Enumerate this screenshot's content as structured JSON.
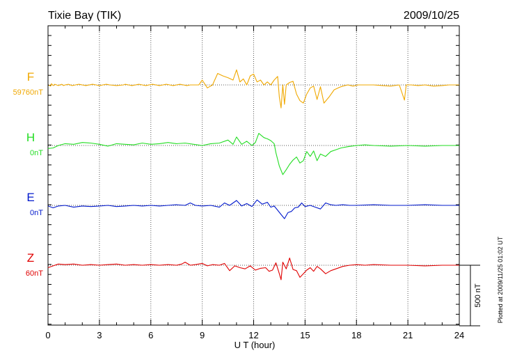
{
  "chart_data": {
    "type": "line",
    "title": "Tixie Bay (TIK)",
    "date": "2009/10/25",
    "xlabel": "U T (hour)",
    "xlim": [
      0,
      24
    ],
    "xticks": [
      0,
      3,
      6,
      9,
      12,
      15,
      18,
      21,
      24
    ],
    "grid": true,
    "scale_bar_label": "500 nT",
    "scale_bar_nT": 500,
    "plotted_note": "Plotted at 2009/11/25 01:02 UT",
    "series": [
      {
        "name": "F",
        "baseline_label": "59760nT",
        "color": "#f0a800",
        "points": [
          [
            0.05,
            0.0
          ],
          [
            0.15,
            -2.0
          ],
          [
            0.2,
            2.0
          ],
          [
            0.3,
            -1.0
          ],
          [
            0.4,
            1.0
          ],
          [
            0.5,
            0.0
          ],
          [
            0.6,
            -1.0
          ],
          [
            0.7,
            0.0
          ],
          [
            0.8,
            1.0
          ],
          [
            0.9,
            -1.0
          ],
          [
            1.0,
            0.0
          ],
          [
            1.2,
            1.0
          ],
          [
            1.4,
            -1.0
          ],
          [
            1.6,
            0.0
          ],
          [
            1.8,
            1.0
          ],
          [
            2.0,
            0.0
          ],
          [
            2.2,
            -1.0
          ],
          [
            2.4,
            0.0
          ],
          [
            2.6,
            1.0
          ],
          [
            2.8,
            0.0
          ],
          [
            3.0,
            -1.0
          ],
          [
            3.2,
            0.0
          ],
          [
            3.4,
            1.0
          ],
          [
            3.6,
            0.0
          ],
          [
            4.0,
            -1.0
          ],
          [
            4.4,
            0.0
          ],
          [
            4.5,
            1.0
          ],
          [
            4.7,
            0.0
          ],
          [
            4.9,
            -1.0
          ],
          [
            5.1,
            0.0
          ],
          [
            5.3,
            1.0
          ],
          [
            5.5,
            0.0
          ],
          [
            5.7,
            -1.0
          ],
          [
            5.9,
            0.0
          ],
          [
            6.1,
            1.0
          ],
          [
            6.3,
            0.0
          ],
          [
            6.5,
            -1.0
          ],
          [
            6.7,
            0.0
          ],
          [
            6.9,
            1.0
          ],
          [
            7.1,
            0.0
          ],
          [
            7.3,
            -1.0
          ],
          [
            7.5,
            0.0
          ],
          [
            7.7,
            1.0
          ],
          [
            7.9,
            0.0
          ],
          [
            8.1,
            -1.0
          ],
          [
            8.3,
            0.0
          ],
          [
            8.5,
            0.0
          ],
          [
            8.8,
            0.0
          ],
          [
            9.0,
            8.0
          ],
          [
            9.3,
            -5.0
          ],
          [
            9.6,
            0.0
          ],
          [
            9.9,
            19.0
          ],
          [
            10.2,
            15.0
          ],
          [
            10.5,
            12.0
          ],
          [
            10.8,
            8.0
          ],
          [
            11.0,
            25.0
          ],
          [
            11.2,
            5.0
          ],
          [
            11.4,
            10.0
          ],
          [
            11.6,
            0.0
          ],
          [
            11.8,
            15.0
          ],
          [
            12.0,
            18.0
          ],
          [
            12.2,
            5.0
          ],
          [
            12.4,
            8.0
          ],
          [
            12.6,
            0.0
          ],
          [
            12.8,
            5.0
          ],
          [
            13.0,
            0.0
          ],
          [
            13.2,
            8.0
          ],
          [
            13.4,
            14.0
          ],
          [
            13.5,
            -20.0
          ],
          [
            13.6,
            -38.0
          ],
          [
            13.7,
            0.0
          ],
          [
            13.8,
            -32.0
          ],
          [
            13.9,
            0.0
          ],
          [
            14.1,
            4.0
          ],
          [
            14.3,
            6.0
          ],
          [
            14.5,
            -15.0
          ],
          [
            14.7,
            -26.0
          ],
          [
            14.9,
            -30.0
          ],
          [
            15.1,
            -15.0
          ],
          [
            15.3,
            -5.0
          ],
          [
            15.5,
            -2.0
          ],
          [
            15.7,
            -24.0
          ],
          [
            15.9,
            -3.0
          ],
          [
            16.1,
            -30.0
          ],
          [
            16.4,
            -20.0
          ],
          [
            16.7,
            -8.0
          ],
          [
            17.0,
            -4.0
          ],
          [
            17.2,
            -2.0
          ],
          [
            17.5,
            0.0
          ],
          [
            17.8,
            -2.0
          ],
          [
            18.1,
            0.0
          ],
          [
            18.5,
            0.0
          ],
          [
            19.0,
            0.0
          ],
          [
            19.5,
            -1.0
          ],
          [
            20.0,
            -2.0
          ],
          [
            20.5,
            0.0
          ],
          [
            20.8,
            -25.0
          ],
          [
            20.9,
            0.0
          ],
          [
            21.2,
            0.0
          ],
          [
            21.6,
            -1.0
          ],
          [
            22.0,
            0.0
          ],
          [
            22.5,
            -2.0
          ],
          [
            23.0,
            -1.0
          ],
          [
            23.4,
            0.0
          ],
          [
            23.8,
            0.0
          ],
          [
            24.0,
            0.0
          ]
        ]
      },
      {
        "name": "H",
        "baseline_label": "0nT",
        "color": "#22dd22",
        "points": [
          [
            0.0,
            -5.0
          ],
          [
            0.3,
            -4.0
          ],
          [
            0.6,
            0.0
          ],
          [
            1.0,
            3.0
          ],
          [
            1.5,
            2.0
          ],
          [
            2.0,
            5.0
          ],
          [
            2.5,
            4.0
          ],
          [
            3.0,
            2.0
          ],
          [
            3.5,
            -1.0
          ],
          [
            4.0,
            3.0
          ],
          [
            4.5,
            2.0
          ],
          [
            5.0,
            1.0
          ],
          [
            5.5,
            4.0
          ],
          [
            6.0,
            2.0
          ],
          [
            6.5,
            3.0
          ],
          [
            7.0,
            5.0
          ],
          [
            7.5,
            3.0
          ],
          [
            8.0,
            4.0
          ],
          [
            8.5,
            2.0
          ],
          [
            9.0,
            0.0
          ],
          [
            9.5,
            3.0
          ],
          [
            10.0,
            4.0
          ],
          [
            10.5,
            9.0
          ],
          [
            10.8,
            2.0
          ],
          [
            11.0,
            14.0
          ],
          [
            11.3,
            2.0
          ],
          [
            11.6,
            7.0
          ],
          [
            11.9,
            0.0
          ],
          [
            12.1,
            5.0
          ],
          [
            12.3,
            20.0
          ],
          [
            12.6,
            13.0
          ],
          [
            12.8,
            11.0
          ],
          [
            13.0,
            8.0
          ],
          [
            13.2,
            3.0
          ],
          [
            13.3,
            -12.0
          ],
          [
            13.5,
            -34.0
          ],
          [
            13.7,
            -48.0
          ],
          [
            13.9,
            -40.0
          ],
          [
            14.1,
            -31.0
          ],
          [
            14.3,
            -24.0
          ],
          [
            14.5,
            -19.0
          ],
          [
            14.7,
            -29.0
          ],
          [
            14.9,
            -25.0
          ],
          [
            15.1,
            -10.0
          ],
          [
            15.3,
            -18.0
          ],
          [
            15.5,
            -9.0
          ],
          [
            15.7,
            -25.0
          ],
          [
            15.9,
            -14.0
          ],
          [
            16.2,
            -18.0
          ],
          [
            16.5,
            -10.0
          ],
          [
            16.8,
            -7.0
          ],
          [
            17.1,
            -4.0
          ],
          [
            17.5,
            -2.0
          ],
          [
            18.0,
            0.0
          ],
          [
            18.5,
            1.0
          ],
          [
            19.0,
            0.0
          ],
          [
            20.0,
            -1.0
          ],
          [
            21.0,
            0.0
          ],
          [
            22.0,
            -1.0
          ],
          [
            23.0,
            0.0
          ],
          [
            24.0,
            0.0
          ]
        ]
      },
      {
        "name": "E",
        "baseline_label": "0nT",
        "color": "#0018cc",
        "points": [
          [
            0.0,
            -1.0
          ],
          [
            0.3,
            -4.0
          ],
          [
            0.6,
            -1.0
          ],
          [
            1.0,
            0.0
          ],
          [
            1.5,
            -3.0
          ],
          [
            2.0,
            -1.0
          ],
          [
            2.5,
            -2.0
          ],
          [
            3.0,
            -1.0
          ],
          [
            3.5,
            0.0
          ],
          [
            4.0,
            -2.0
          ],
          [
            4.5,
            -1.0
          ],
          [
            5.0,
            0.0
          ],
          [
            5.5,
            -1.0
          ],
          [
            6.0,
            0.0
          ],
          [
            6.5,
            -1.0
          ],
          [
            7.0,
            0.0
          ],
          [
            7.5,
            1.0
          ],
          [
            8.0,
            0.0
          ],
          [
            8.3,
            4.0
          ],
          [
            8.6,
            0.0
          ],
          [
            9.0,
            -1.0
          ],
          [
            9.5,
            0.0
          ],
          [
            10.0,
            -3.0
          ],
          [
            10.3,
            4.0
          ],
          [
            10.6,
            0.0
          ],
          [
            11.0,
            8.0
          ],
          [
            11.3,
            -1.0
          ],
          [
            11.6,
            3.0
          ],
          [
            11.9,
            -2.0
          ],
          [
            12.2,
            9.0
          ],
          [
            12.5,
            2.0
          ],
          [
            12.8,
            5.0
          ],
          [
            13.0,
            -3.0
          ],
          [
            13.2,
            -1.0
          ],
          [
            13.4,
            -8.0
          ],
          [
            13.6,
            -15.0
          ],
          [
            13.8,
            -22.0
          ],
          [
            14.0,
            -12.0
          ],
          [
            14.2,
            -10.0
          ],
          [
            14.4,
            -4.0
          ],
          [
            14.6,
            -3.0
          ],
          [
            14.8,
            4.0
          ],
          [
            15.0,
            -2.0
          ],
          [
            15.3,
            0.0
          ],
          [
            15.6,
            -3.0
          ],
          [
            15.9,
            -6.0
          ],
          [
            16.2,
            4.0
          ],
          [
            16.5,
            1.0
          ],
          [
            16.8,
            0.0
          ],
          [
            17.2,
            1.0
          ],
          [
            17.6,
            0.0
          ],
          [
            18.0,
            0.0
          ],
          [
            19.0,
            1.0
          ],
          [
            20.0,
            0.0
          ],
          [
            21.0,
            0.0
          ],
          [
            22.0,
            1.0
          ],
          [
            23.0,
            0.0
          ],
          [
            24.0,
            0.0
          ]
        ]
      },
      {
        "name": "Z",
        "baseline_label": "60nT",
        "color": "#e00000",
        "points": [
          [
            0.0,
            -4.0
          ],
          [
            0.3,
            -1.0
          ],
          [
            0.6,
            2.0
          ],
          [
            1.0,
            1.0
          ],
          [
            1.5,
            2.0
          ],
          [
            2.0,
            0.0
          ],
          [
            2.5,
            1.0
          ],
          [
            3.0,
            0.0
          ],
          [
            3.5,
            1.0
          ],
          [
            4.0,
            2.0
          ],
          [
            4.5,
            0.0
          ],
          [
            5.0,
            1.0
          ],
          [
            5.5,
            0.0
          ],
          [
            6.0,
            1.0
          ],
          [
            6.5,
            0.0
          ],
          [
            7.0,
            1.0
          ],
          [
            7.5,
            0.0
          ],
          [
            7.8,
            2.0
          ],
          [
            8.0,
            5.0
          ],
          [
            8.3,
            0.0
          ],
          [
            8.6,
            1.0
          ],
          [
            9.0,
            3.0
          ],
          [
            9.3,
            -1.0
          ],
          [
            9.6,
            1.0
          ],
          [
            10.0,
            0.0
          ],
          [
            10.3,
            3.0
          ],
          [
            10.6,
            -9.0
          ],
          [
            10.9,
            -1.0
          ],
          [
            11.2,
            -4.0
          ],
          [
            11.5,
            -6.0
          ],
          [
            11.8,
            -1.0
          ],
          [
            12.1,
            -8.0
          ],
          [
            12.4,
            -5.0
          ],
          [
            12.7,
            -4.0
          ],
          [
            12.9,
            -10.0
          ],
          [
            13.1,
            -8.0
          ],
          [
            13.3,
            4.0
          ],
          [
            13.5,
            -14.0
          ],
          [
            13.6,
            -24.0
          ],
          [
            13.7,
            5.0
          ],
          [
            13.9,
            -6.0
          ],
          [
            14.1,
            12.0
          ],
          [
            14.3,
            -7.0
          ],
          [
            14.5,
            -9.0
          ],
          [
            14.7,
            -20.0
          ],
          [
            14.9,
            -14.0
          ],
          [
            15.1,
            -8.0
          ],
          [
            15.3,
            -4.0
          ],
          [
            15.5,
            -10.0
          ],
          [
            15.7,
            -2.0
          ],
          [
            15.9,
            -6.0
          ],
          [
            16.2,
            -14.0
          ],
          [
            16.5,
            -9.0
          ],
          [
            16.8,
            -6.0
          ],
          [
            17.2,
            -2.0
          ],
          [
            17.6,
            0.0
          ],
          [
            18.0,
            1.0
          ],
          [
            18.5,
            0.0
          ],
          [
            19.0,
            1.0
          ],
          [
            20.0,
            0.0
          ],
          [
            21.0,
            0.0
          ],
          [
            22.0,
            -1.0
          ],
          [
            23.0,
            0.0
          ],
          [
            24.0,
            0.0
          ]
        ]
      }
    ]
  }
}
